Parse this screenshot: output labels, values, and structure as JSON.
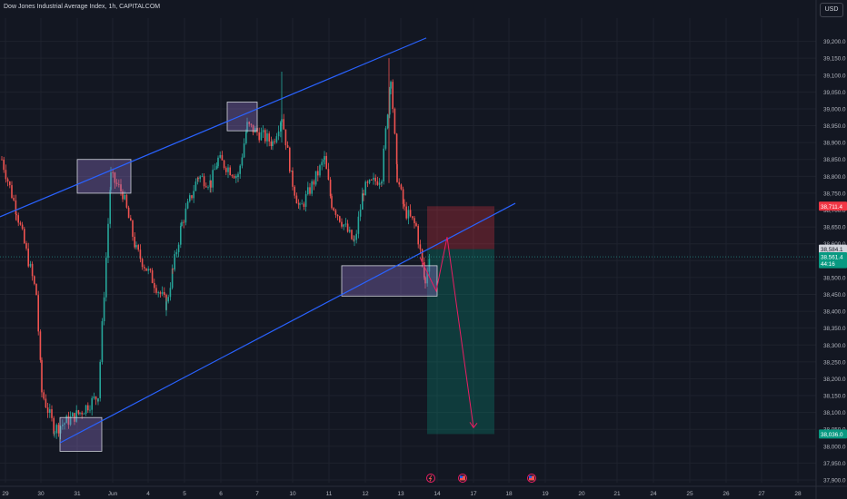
{
  "header": {
    "title": "Dow Jones Industrial Average Index, 1h, CAPITALCOM",
    "currency_button": "USD"
  },
  "colors": {
    "background": "#131722",
    "grid": "#1e222d",
    "up_candle": "#26a69a",
    "down_candle": "#ef5350",
    "channel_line": "#2962ff",
    "zone_fill": "rgba(149,117,205,0.35)",
    "zone_border": "#d1d4dc",
    "risk_fill": "rgba(242,54,69,0.28)",
    "reward_fill": "rgba(8,153,129,0.28)",
    "projection_arrow": "#e91e63"
  },
  "event_icons": [
    {
      "name": "flash-event-icon",
      "x_label": "14"
    },
    {
      "name": "us-flag-event-icon",
      "x_label": "17"
    },
    {
      "name": "us-flag-event-icon",
      "x_label": "19"
    }
  ],
  "chart_data": {
    "type": "candlestick",
    "title": "Dow Jones Industrial Average Index, 1h, CAPITALCOM",
    "xlabel": "",
    "ylabel": "",
    "ylim": [
      37900,
      39250
    ],
    "grid": true,
    "x_ticks": [
      "29",
      "30",
      "31",
      "Jun",
      "4",
      "5",
      "6",
      "7",
      "10",
      "11",
      "12",
      "13",
      "14",
      "17",
      "18",
      "19",
      "20",
      "21",
      "24",
      "25",
      "26",
      "27",
      "28"
    ],
    "y_ticks": [
      "39,200.0",
      "39,150.0",
      "39,100.0",
      "39,050.0",
      "39,000.0",
      "38,950.0",
      "38,900.0",
      "38,850.0",
      "38,800.0",
      "38,750.0",
      "38,700.0",
      "38,650.0",
      "38,600.0",
      "38,550.0",
      "38,500.0",
      "38,450.0",
      "38,400.0",
      "38,350.0",
      "38,300.0",
      "38,250.0",
      "38,200.0",
      "38,150.0",
      "38,100.0",
      "38,050.0",
      "38,000.0",
      "37,950.0",
      "37,900.0"
    ],
    "price_labels": [
      {
        "text": "38,711.4",
        "value": 38711.4,
        "color": "#f23645"
      },
      {
        "text": "38,584.1",
        "value": 38584.1,
        "color": "#d1d4dc"
      },
      {
        "text": "38,561.4",
        "value": 38561.4,
        "color": "#089981"
      },
      {
        "text": "44:16",
        "value": 38541,
        "color": "#089981"
      },
      {
        "text": "38,036.0",
        "value": 38036.0,
        "color": "#089981"
      }
    ],
    "price_path": [
      {
        "day": "29",
        "value": 38850
      },
      {
        "day": "29",
        "value": 38700
      },
      {
        "day": "30",
        "value": 38450
      },
      {
        "day": "30",
        "value": 38160
      },
      {
        "day": "30",
        "value": 38050
      },
      {
        "day": "31",
        "value": 38100
      },
      {
        "day": "31",
        "value": 38150
      },
      {
        "day": "31",
        "value": 38800
      },
      {
        "day": "Jun",
        "value": 38750
      },
      {
        "day": "Jun",
        "value": 38580
      },
      {
        "day": "Jun",
        "value": 38420
      },
      {
        "day": "4",
        "value": 38520
      },
      {
        "day": "4",
        "value": 38660
      },
      {
        "day": "4",
        "value": 38800
      },
      {
        "day": "5",
        "value": 38780
      },
      {
        "day": "5",
        "value": 38850
      },
      {
        "day": "6",
        "value": 38800
      },
      {
        "day": "6",
        "value": 38950
      },
      {
        "day": "7",
        "value": 38900
      },
      {
        "day": "7",
        "value": 38980
      },
      {
        "day": "10",
        "value": 38780
      },
      {
        "day": "10",
        "value": 38700
      },
      {
        "day": "10",
        "value": 38850
      },
      {
        "day": "11",
        "value": 38720
      },
      {
        "day": "11",
        "value": 38600
      },
      {
        "day": "11",
        "value": 38760
      },
      {
        "day": "12",
        "value": 38800
      },
      {
        "day": "12",
        "value": 39100
      },
      {
        "day": "12",
        "value": 38800
      },
      {
        "day": "13",
        "value": 38700
      },
      {
        "day": "13",
        "value": 38650
      },
      {
        "day": "13",
        "value": 38480
      },
      {
        "day": "13",
        "value": 38584
      }
    ],
    "drawings": {
      "channel_upper": [
        {
          "day": "29",
          "value": 38680
        },
        {
          "day": "13.7",
          "value": 39210
        }
      ],
      "channel_lower": [
        {
          "day": "30.5",
          "value": 38010
        },
        {
          "day": "18.2",
          "value": 38720
        }
      ],
      "zones": [
        {
          "from": "31",
          "to": "3",
          "high": 38850,
          "low": 38750
        },
        {
          "from": "6.2",
          "to": "7",
          "high": 39020,
          "low": 38935
        },
        {
          "from": "30.5",
          "to": "31.7",
          "high": 38085,
          "low": 37985
        },
        {
          "from": "11.4",
          "to": "14",
          "high": 38535,
          "low": 38445
        }
      ],
      "short_position": {
        "entry": 38584.1,
        "stop": 38711.4,
        "target": 38036.0,
        "from": "13.7",
        "to": "18.5"
      },
      "projection": [
        {
          "day": "13.5",
          "value": 38560
        },
        {
          "day": "14",
          "value": 38460
        },
        {
          "day": "14.3",
          "value": 38620
        },
        {
          "day": "17",
          "value": 38055
        }
      ]
    }
  }
}
